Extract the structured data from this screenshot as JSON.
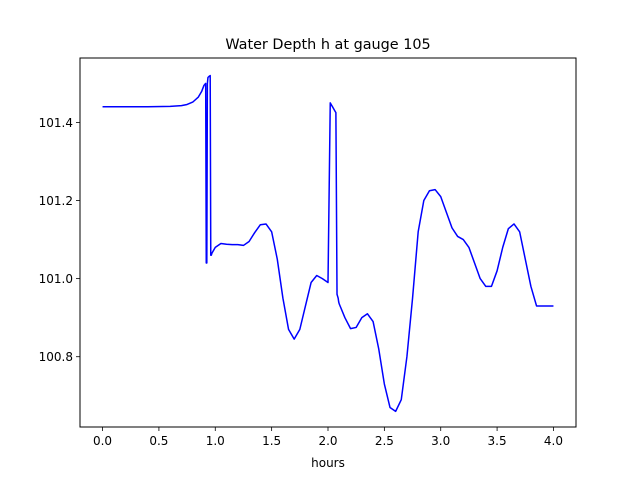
{
  "chart_data": {
    "type": "line",
    "title": "Water Depth h at gauge 105",
    "xlabel": "hours",
    "ylabel": "",
    "xlim": [
      -0.2,
      4.2
    ],
    "ylim": [
      100.62,
      101.565
    ],
    "grid": false,
    "x_ticks": [
      {
        "value": 0.0,
        "label": "0.0"
      },
      {
        "value": 0.5,
        "label": "0.5"
      },
      {
        "value": 1.0,
        "label": "1.0"
      },
      {
        "value": 1.5,
        "label": "1.5"
      },
      {
        "value": 2.0,
        "label": "2.0"
      },
      {
        "value": 2.5,
        "label": "2.5"
      },
      {
        "value": 3.0,
        "label": "3.0"
      },
      {
        "value": 3.5,
        "label": "3.5"
      },
      {
        "value": 4.0,
        "label": "4.0"
      }
    ],
    "y_ticks": [
      {
        "value": 100.8,
        "label": "100.8"
      },
      {
        "value": 101.0,
        "label": "101.0"
      },
      {
        "value": 101.2,
        "label": "101.2"
      },
      {
        "value": 101.4,
        "label": "101.4"
      }
    ],
    "series": [
      {
        "color": "#0000ff",
        "x": [
          0.0,
          0.2,
          0.4,
          0.6,
          0.7,
          0.75,
          0.8,
          0.85,
          0.88,
          0.9,
          0.915,
          0.92,
          0.925,
          0.93,
          0.935,
          0.945,
          0.955,
          0.96,
          0.965,
          0.97,
          1.0,
          1.05,
          1.1,
          1.15,
          1.2,
          1.25,
          1.3,
          1.35,
          1.4,
          1.45,
          1.5,
          1.55,
          1.6,
          1.65,
          1.7,
          1.75,
          1.8,
          1.85,
          1.9,
          1.95,
          2.0,
          2.02,
          2.03,
          2.04,
          2.05,
          2.06,
          2.07,
          2.08,
          2.085,
          2.09,
          2.095,
          2.1,
          2.15,
          2.2,
          2.25,
          2.3,
          2.35,
          2.4,
          2.45,
          2.5,
          2.55,
          2.6,
          2.65,
          2.7,
          2.75,
          2.8,
          2.85,
          2.9,
          2.95,
          3.0,
          3.05,
          3.1,
          3.15,
          3.2,
          3.25,
          3.3,
          3.35,
          3.4,
          3.45,
          3.5,
          3.55,
          3.6,
          3.65,
          3.7,
          3.75,
          3.8,
          3.85,
          3.9,
          3.95,
          4.0
        ],
        "y": [
          101.44,
          101.44,
          101.44,
          101.441,
          101.443,
          101.446,
          101.452,
          101.465,
          101.48,
          101.495,
          101.5,
          101.04,
          101.04,
          101.5,
          101.515,
          101.518,
          101.52,
          101.06,
          101.06,
          101.065,
          101.08,
          101.09,
          101.088,
          101.087,
          101.087,
          101.085,
          101.095,
          101.118,
          101.138,
          101.14,
          101.12,
          101.05,
          100.95,
          100.87,
          100.845,
          100.87,
          100.93,
          100.99,
          101.008,
          101.0,
          100.99,
          101.45,
          101.445,
          101.44,
          101.435,
          101.43,
          101.425,
          100.96,
          100.955,
          100.95,
          100.94,
          100.935,
          100.9,
          100.872,
          100.875,
          100.9,
          100.91,
          100.89,
          100.82,
          100.73,
          100.67,
          100.66,
          100.69,
          100.8,
          100.95,
          101.12,
          101.2,
          101.225,
          101.228,
          101.21,
          101.17,
          101.13,
          101.108,
          101.1,
          101.08,
          101.04,
          101.0,
          100.98,
          100.98,
          101.02,
          101.08,
          101.128,
          101.14,
          101.12,
          101.05,
          100.98,
          100.93,
          100.93,
          100.93,
          100.93
        ]
      }
    ]
  }
}
